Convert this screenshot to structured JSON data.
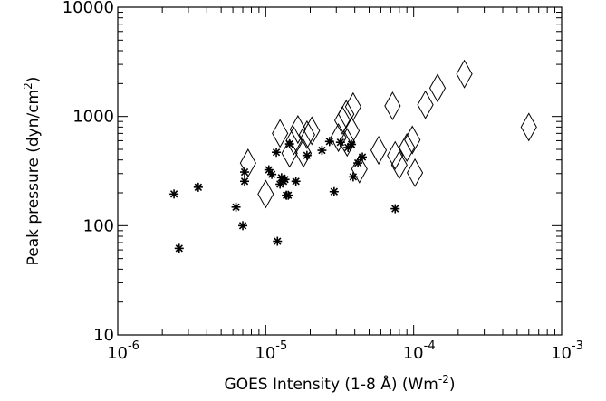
{
  "chart_data": {
    "type": "scatter",
    "title": "",
    "xlabel": "GOES Intensity (1-8 Å) (Wm",
    "xlabel_sup": "-2",
    "xlabel_end": ")",
    "ylabel": "Peak pressure (dyn/cm",
    "ylabel_sup": "2",
    "ylabel_end": ")",
    "xscale": "log",
    "yscale": "log",
    "xlim": [
      1e-06,
      0.001
    ],
    "ylim": [
      10,
      10000
    ],
    "grid": false,
    "x_ticks": [
      {
        "value": 1e-06,
        "base": "10",
        "exp": "-6"
      },
      {
        "value": 1e-05,
        "base": "10",
        "exp": "-5"
      },
      {
        "value": 0.0001,
        "base": "10",
        "exp": "-4"
      },
      {
        "value": 0.001,
        "base": "10",
        "exp": "-3"
      }
    ],
    "y_ticks": [
      {
        "value": 10,
        "label": "10"
      },
      {
        "value": 100,
        "label": "100"
      },
      {
        "value": 1000,
        "label": "1000"
      },
      {
        "value": 10000,
        "label": "10000"
      }
    ],
    "series": [
      {
        "marker": "asterisk",
        "points": [
          [
            2.4e-06,
            195
          ],
          [
            2.6e-06,
            62
          ],
          [
            3.5e-06,
            225
          ],
          [
            6.3e-06,
            148
          ],
          [
            7e-06,
            100
          ],
          [
            7.2e-06,
            310
          ],
          [
            7.2e-06,
            255
          ],
          [
            1.05e-05,
            325
          ],
          [
            1.1e-05,
            295
          ],
          [
            1.18e-05,
            470
          ],
          [
            1.2e-05,
            72
          ],
          [
            1.25e-05,
            240
          ],
          [
            1.28e-05,
            275
          ],
          [
            1.32e-05,
            255
          ],
          [
            1.35e-05,
            265
          ],
          [
            1.38e-05,
            190
          ],
          [
            1.42e-05,
            190
          ],
          [
            1.45e-05,
            560
          ],
          [
            1.6e-05,
            255
          ],
          [
            1.9e-05,
            440
          ],
          [
            2.4e-05,
            490
          ],
          [
            2.7e-05,
            590
          ],
          [
            2.9e-05,
            205
          ],
          [
            3.2e-05,
            580
          ],
          [
            3.6e-05,
            520
          ],
          [
            3.8e-05,
            555
          ],
          [
            3.9e-05,
            280
          ],
          [
            4.2e-05,
            375
          ],
          [
            4.5e-05,
            425
          ],
          [
            7.5e-05,
            143
          ]
        ]
      },
      {
        "marker": "diamond",
        "points": [
          [
            7.6e-06,
            375
          ],
          [
            1e-05,
            195
          ],
          [
            1.25e-05,
            700
          ],
          [
            1.45e-05,
            460
          ],
          [
            1.55e-05,
            600
          ],
          [
            1.65e-05,
            760
          ],
          [
            1.8e-05,
            460
          ],
          [
            1.9e-05,
            680
          ],
          [
            2.05e-05,
            740
          ],
          [
            3.1e-05,
            640
          ],
          [
            3.3e-05,
            920
          ],
          [
            3.5e-05,
            1050
          ],
          [
            3.55e-05,
            580
          ],
          [
            3.8e-05,
            740
          ],
          [
            3.9e-05,
            1230
          ],
          [
            4.3e-05,
            330
          ],
          [
            5.8e-05,
            490
          ],
          [
            7.2e-05,
            1250
          ],
          [
            7.5e-05,
            440
          ],
          [
            8e-05,
            360
          ],
          [
            9e-05,
            520
          ],
          [
            9.8e-05,
            610
          ],
          [
            0.000102,
            305
          ],
          [
            0.00012,
            1280
          ],
          [
            0.000145,
            1820
          ],
          [
            0.00022,
            2450
          ],
          [
            0.0006,
            800
          ]
        ]
      }
    ]
  }
}
